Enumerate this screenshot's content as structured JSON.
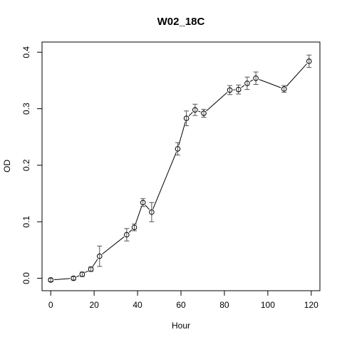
{
  "chart_data": {
    "type": "line",
    "title": "W02_18C",
    "xlabel": "Hour",
    "ylabel": "OD",
    "xlim": [
      -4,
      124
    ],
    "ylim": [
      -0.022,
      0.418
    ],
    "xticks": [
      0,
      20,
      40,
      60,
      80,
      100,
      120
    ],
    "yticks": [
      0.0,
      0.1,
      0.2,
      0.3,
      0.4
    ],
    "xtick_labels": [
      "0",
      "20",
      "40",
      "60",
      "80",
      "100",
      "120"
    ],
    "ytick_labels": [
      "0.0",
      "0.1",
      "0.2",
      "0.3",
      "0.4"
    ],
    "grid": false,
    "marker": "open-circle",
    "error_bars": true,
    "series": [
      {
        "x": [
          0,
          10.5,
          14.5,
          18.5,
          22.5,
          35,
          38.5,
          42.5,
          46.5,
          58.5,
          62.5,
          66.5,
          70.5,
          82.5,
          86.5,
          90.5,
          94.5,
          107.5,
          119
        ],
        "y": [
          -0.003,
          0.0,
          0.007,
          0.016,
          0.039,
          0.077,
          0.09,
          0.134,
          0.117,
          0.229,
          0.283,
          0.298,
          0.292,
          0.333,
          0.334,
          0.345,
          0.354,
          0.335,
          0.384
        ],
        "error": [
          0.003,
          0.003,
          0.004,
          0.004,
          0.018,
          0.011,
          0.006,
          0.007,
          0.017,
          0.011,
          0.013,
          0.01,
          0.007,
          0.008,
          0.008,
          0.011,
          0.011,
          0.006,
          0.011
        ]
      }
    ]
  }
}
